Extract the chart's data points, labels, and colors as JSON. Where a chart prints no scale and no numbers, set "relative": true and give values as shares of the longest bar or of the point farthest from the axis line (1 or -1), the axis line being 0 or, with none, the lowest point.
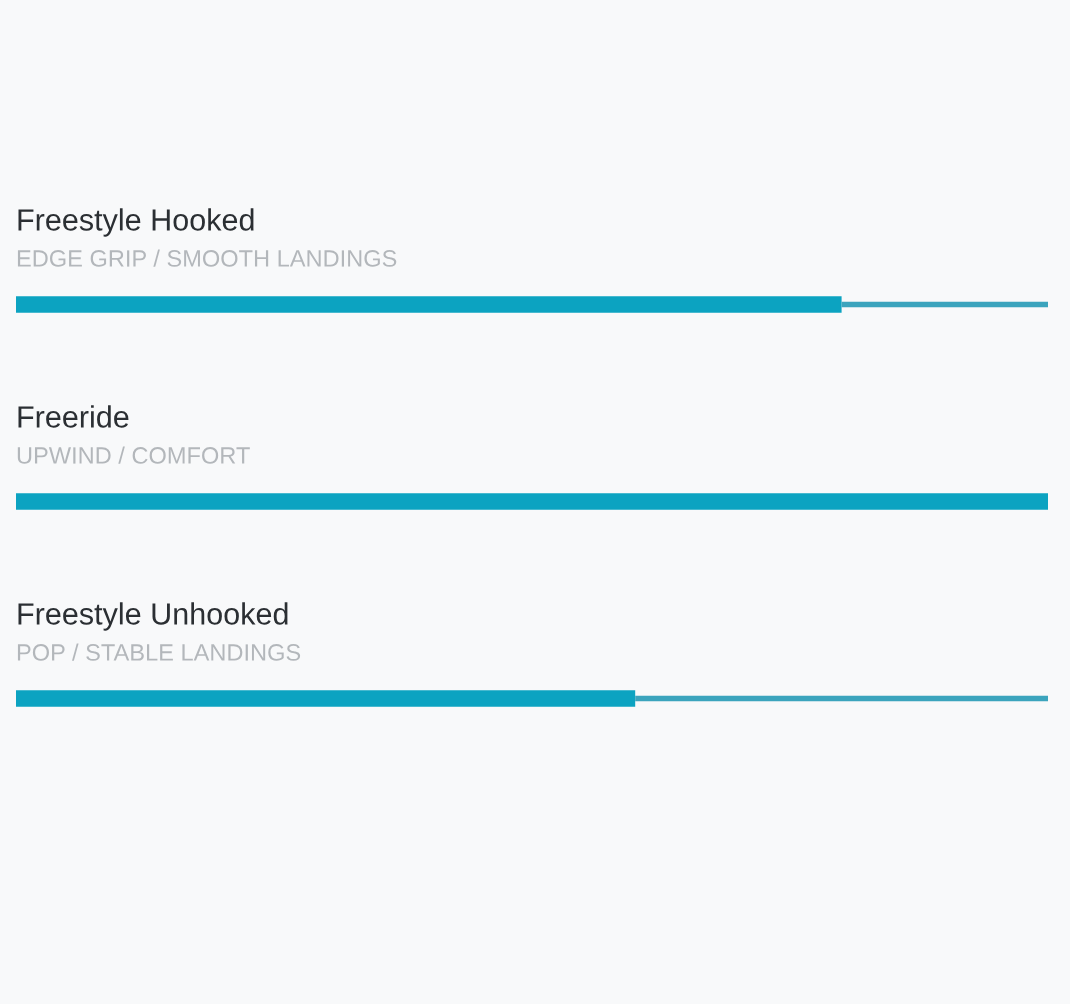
{
  "chart_data": {
    "type": "bar",
    "orientation": "horizontal",
    "stacked": true,
    "relative": true,
    "categories": [
      "Freestyle Hooked",
      "Freeride",
      "Freestyle Unhooked"
    ],
    "series": [
      {
        "color": "#0ca3c1",
        "values": [
          0.8,
          1.0,
          0.6
        ]
      },
      {
        "color": "#3ba4bd",
        "values": [
          0.2,
          null,
          0.4
        ]
      }
    ],
    "annotations": [
      "EDGE GRIP / SMOOTH LANDINGS",
      "UPWIND / COMFORT",
      "POP / STABLE LANDINGS"
    ]
  }
}
